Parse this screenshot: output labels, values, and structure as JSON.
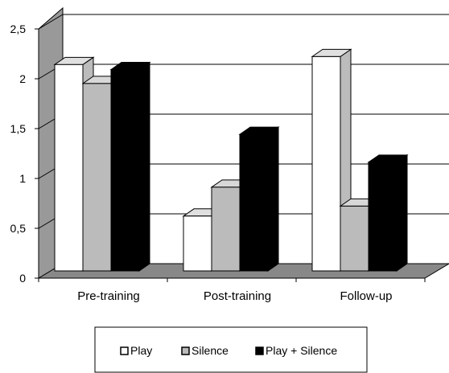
{
  "chart_data": {
    "type": "bar",
    "title": "",
    "xlabel": "",
    "ylabel": "",
    "categories": [
      "Pre-training",
      "Post-training",
      "Follow-up"
    ],
    "ylim": [
      0,
      2.5
    ],
    "yticks": [
      "0",
      "0,5",
      "1",
      "1,5",
      "2",
      "2,5"
    ],
    "grid": true,
    "legend_position": "bottom",
    "series": [
      {
        "name": "Play",
        "color": "#ffffff",
        "values": [
          2.07,
          0.55,
          2.15
        ]
      },
      {
        "name": "Silence",
        "color": "#bbbbbb",
        "values": [
          1.88,
          0.84,
          0.65
        ]
      },
      {
        "name": "Play + Silence",
        "color": "#000000",
        "values": [
          2.02,
          1.37,
          1.09
        ]
      }
    ]
  }
}
